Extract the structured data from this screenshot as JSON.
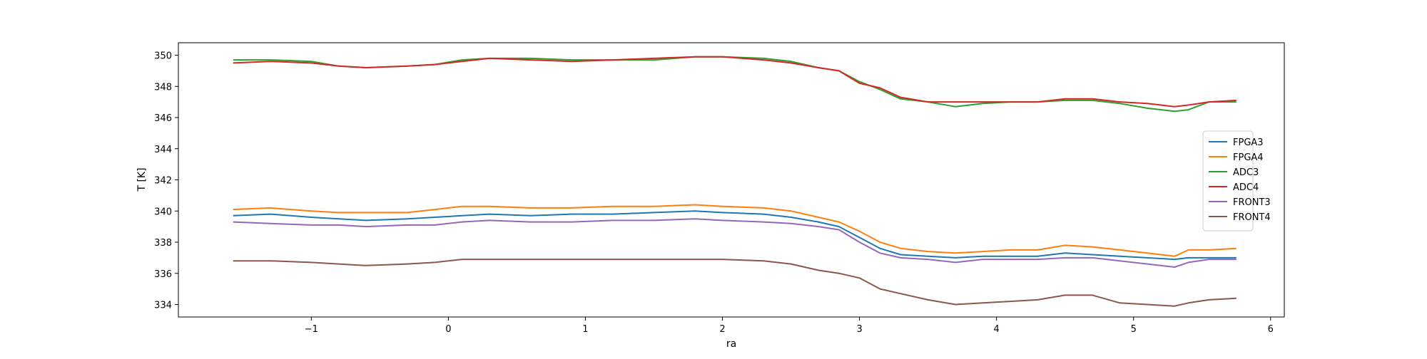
{
  "chart_data": {
    "type": "line",
    "title": "",
    "xlabel": "ra",
    "ylabel": "T [K]",
    "xlim": [
      -1.97,
      6.1
    ],
    "ylim": [
      333.2,
      350.8
    ],
    "xticks": [
      -1,
      0,
      1,
      2,
      3,
      4,
      5,
      6
    ],
    "xtick_labels": [
      "−1",
      "0",
      "1",
      "2",
      "3",
      "4",
      "5",
      "6"
    ],
    "yticks": [
      334,
      336,
      338,
      340,
      342,
      344,
      346,
      348,
      350
    ],
    "ytick_labels": [
      "334",
      "336",
      "338",
      "340",
      "342",
      "344",
      "346",
      "348",
      "350"
    ],
    "grid": false,
    "legend_position": "center-right",
    "x": [
      -1.57,
      -1.3,
      -1.0,
      -0.8,
      -0.6,
      -0.3,
      -0.1,
      0.1,
      0.3,
      0.6,
      0.9,
      1.2,
      1.5,
      1.8,
      2.0,
      2.3,
      2.5,
      2.7,
      2.85,
      3.0,
      3.15,
      3.3,
      3.5,
      3.7,
      3.9,
      4.1,
      4.3,
      4.5,
      4.7,
      4.9,
      5.1,
      5.3,
      5.4,
      5.55,
      5.75
    ],
    "series": [
      {
        "name": "FPGA3",
        "color": "#1f77b4",
        "values": [
          339.7,
          339.8,
          339.6,
          339.5,
          339.4,
          339.5,
          339.6,
          339.7,
          339.8,
          339.7,
          339.8,
          339.8,
          339.9,
          340.0,
          339.9,
          339.8,
          339.6,
          339.3,
          339.0,
          338.3,
          337.6,
          337.2,
          337.1,
          337.0,
          337.1,
          337.1,
          337.1,
          337.3,
          337.2,
          337.1,
          337.0,
          336.9,
          337.0,
          337.0,
          337.0
        ]
      },
      {
        "name": "FPGA4",
        "color": "#ff7f0e",
        "values": [
          340.1,
          340.2,
          340.0,
          339.9,
          339.9,
          339.9,
          340.1,
          340.3,
          340.3,
          340.2,
          340.2,
          340.3,
          340.3,
          340.4,
          340.3,
          340.2,
          340.0,
          339.6,
          339.3,
          338.7,
          338.0,
          337.6,
          337.4,
          337.3,
          337.4,
          337.5,
          337.5,
          337.8,
          337.7,
          337.5,
          337.3,
          337.1,
          337.5,
          337.5,
          337.6
        ]
      },
      {
        "name": "ADC3",
        "color": "#2ca02c",
        "values": [
          349.7,
          349.7,
          349.6,
          349.3,
          349.2,
          349.3,
          349.4,
          349.7,
          349.8,
          349.8,
          349.7,
          349.7,
          349.7,
          349.9,
          349.9,
          349.8,
          349.6,
          349.2,
          349.0,
          348.3,
          347.8,
          347.2,
          347.0,
          346.7,
          346.9,
          347.0,
          347.0,
          347.1,
          347.1,
          346.9,
          346.6,
          346.4,
          346.5,
          347.0,
          347.0
        ]
      },
      {
        "name": "ADC4",
        "color": "#d62728",
        "values": [
          349.5,
          349.6,
          349.5,
          349.3,
          349.2,
          349.3,
          349.4,
          349.6,
          349.8,
          349.7,
          349.6,
          349.7,
          349.8,
          349.9,
          349.9,
          349.7,
          349.5,
          349.2,
          349.0,
          348.2,
          347.9,
          347.3,
          347.0,
          347.0,
          347.0,
          347.0,
          347.0,
          347.2,
          347.2,
          347.0,
          346.9,
          346.7,
          346.8,
          347.0,
          347.1
        ]
      },
      {
        "name": "FRONT3",
        "color": "#9467bd",
        "values": [
          339.3,
          339.2,
          339.1,
          339.1,
          339.0,
          339.1,
          339.1,
          339.3,
          339.4,
          339.3,
          339.3,
          339.4,
          339.4,
          339.5,
          339.4,
          339.3,
          339.2,
          339.0,
          338.8,
          338.0,
          337.3,
          337.0,
          336.9,
          336.7,
          336.9,
          336.9,
          336.9,
          337.0,
          337.0,
          336.8,
          336.6,
          336.4,
          336.7,
          336.9,
          336.9
        ]
      },
      {
        "name": "FRONT4",
        "color": "#8c564b",
        "values": [
          336.8,
          336.8,
          336.7,
          336.6,
          336.5,
          336.6,
          336.7,
          336.9,
          336.9,
          336.9,
          336.9,
          336.9,
          336.9,
          336.9,
          336.9,
          336.8,
          336.6,
          336.2,
          336.0,
          335.7,
          335.0,
          334.7,
          334.3,
          334.0,
          334.1,
          334.2,
          334.3,
          334.6,
          334.6,
          334.1,
          334.0,
          333.9,
          334.1,
          334.3,
          334.4
        ]
      }
    ]
  }
}
